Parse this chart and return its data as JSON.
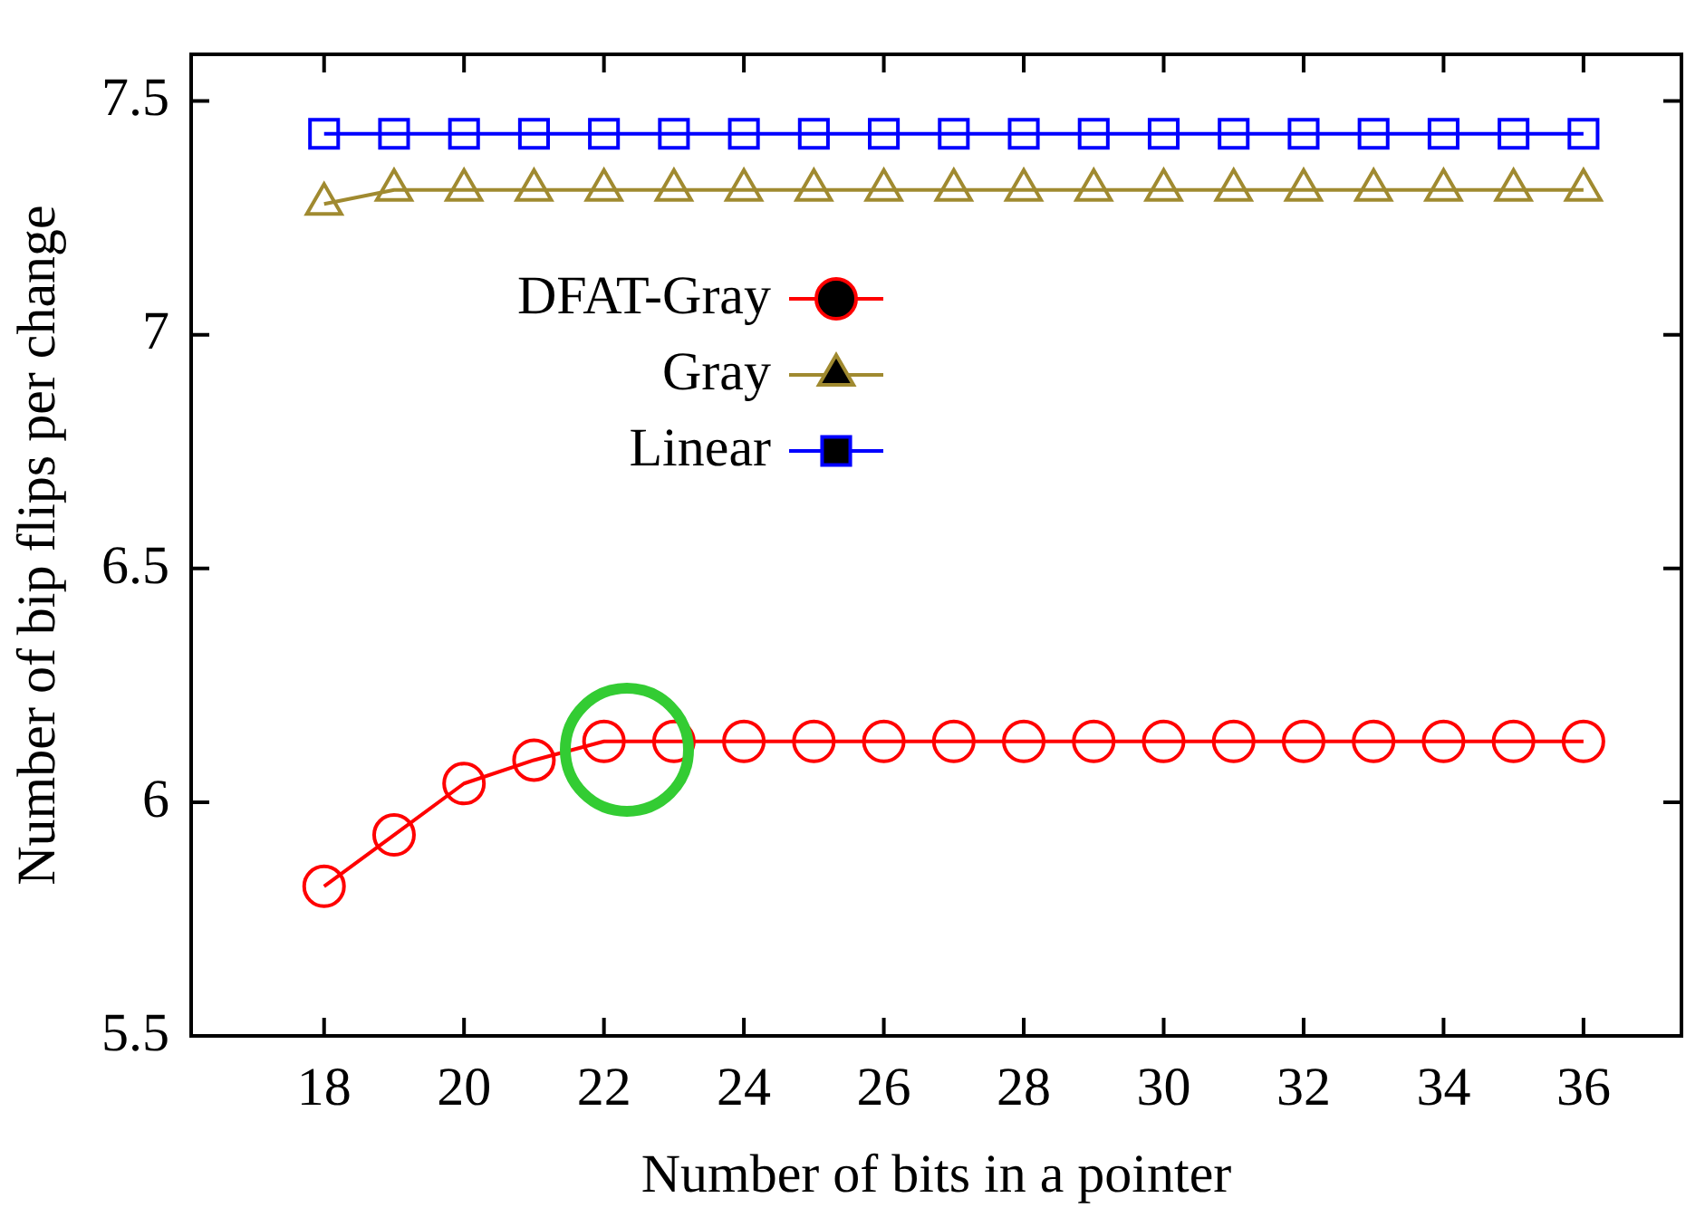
{
  "chart_data": {
    "type": "line",
    "xlabel": "Number of bits in a pointer",
    "ylabel": "Number of bip flips per change",
    "x": [
      18,
      19,
      20,
      21,
      22,
      23,
      24,
      25,
      26,
      27,
      28,
      29,
      30,
      31,
      32,
      33,
      34,
      35,
      36
    ],
    "series": [
      {
        "name": "DFAT-Gray",
        "color": "#ff0000",
        "marker": "circle",
        "values": [
          5.82,
          5.93,
          6.04,
          6.09,
          6.13,
          6.13,
          6.13,
          6.13,
          6.13,
          6.13,
          6.13,
          6.13,
          6.13,
          6.13,
          6.13,
          6.13,
          6.13,
          6.13,
          6.13
        ]
      },
      {
        "name": "Gray",
        "color": "#a08a30",
        "marker": "triangle",
        "values": [
          7.28,
          7.31,
          7.31,
          7.31,
          7.31,
          7.31,
          7.31,
          7.31,
          7.31,
          7.31,
          7.31,
          7.31,
          7.31,
          7.31,
          7.31,
          7.31,
          7.31,
          7.31,
          7.31
        ]
      },
      {
        "name": "Linear",
        "color": "#0000ff",
        "marker": "square",
        "values": [
          7.43,
          7.43,
          7.43,
          7.43,
          7.43,
          7.43,
          7.43,
          7.43,
          7.43,
          7.43,
          7.43,
          7.43,
          7.43,
          7.43,
          7.43,
          7.43,
          7.43,
          7.43,
          7.43
        ]
      }
    ],
    "xlim": [
      16.1,
      37.4
    ],
    "xticks": [
      18,
      20,
      22,
      24,
      26,
      28,
      30,
      32,
      34,
      36
    ],
    "ylim": [
      5.5,
      7.6
    ],
    "yticks": [
      5.5,
      6,
      6.5,
      7,
      7.5
    ],
    "grid": false,
    "legend": "top left",
    "line_style": "solid"
  }
}
